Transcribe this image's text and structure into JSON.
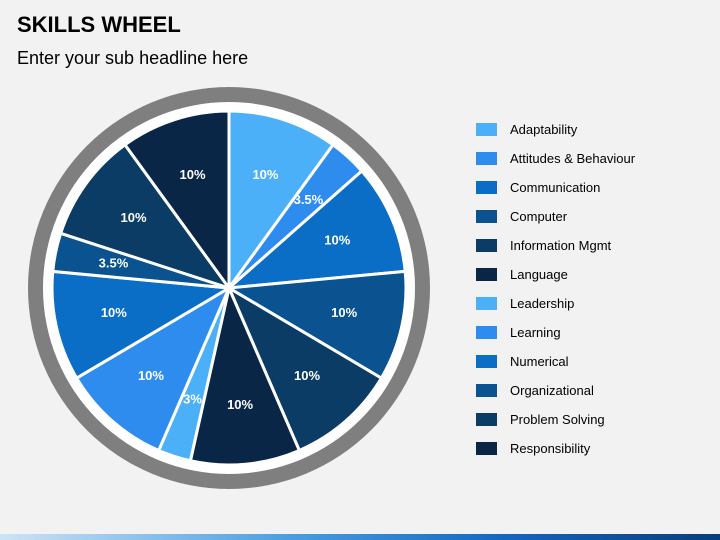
{
  "header": {
    "title": "SKILLS WHEEL",
    "subtitle": "Enter your sub headline here"
  },
  "chart_data": {
    "type": "pie",
    "title": "",
    "start_angle_deg": 0,
    "direction": "clockwise",
    "categories": [
      "Adaptability",
      "Attitudes & Behaviour",
      "Communication",
      "Computer",
      "Information Mgmt",
      "Language",
      "Leadership",
      "Learning",
      "Numerical",
      "Organizational",
      "Problem Solving",
      "Responsibility"
    ],
    "values": [
      10,
      3.5,
      10,
      10,
      10,
      10,
      3,
      10,
      10,
      3.5,
      10,
      10
    ],
    "value_labels": [
      "10%",
      "3.5%",
      "10%",
      "10%",
      "10%",
      "10%",
      "3%",
      "10%",
      "10%",
      "3.5%",
      "10%",
      "10%"
    ],
    "colors": [
      "#4cb0f9",
      "#2e8cef",
      "#0a6ec6",
      "#0a5290",
      "#0b3c66",
      "#0a2647",
      "#4cb0f9",
      "#2e8cef",
      "#0a6ec6",
      "#0a5290",
      "#0b3c66",
      "#0a2647"
    ],
    "label_color": "#ffffff",
    "rim_color": "#7f7f7f",
    "separator_color": "#ffffff",
    "legend_position": "right"
  }
}
